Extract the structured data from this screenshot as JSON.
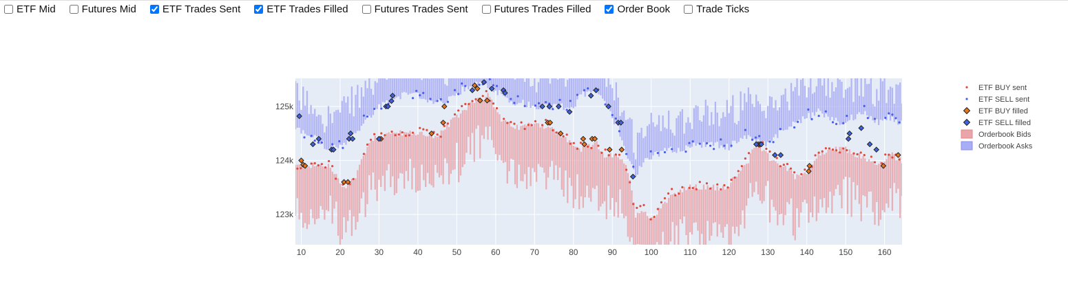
{
  "toolbar": {
    "toggles": [
      {
        "label": "ETF Mid",
        "checked": false
      },
      {
        "label": "Futures Mid",
        "checked": false
      },
      {
        "label": "ETF Trades Sent",
        "checked": true
      },
      {
        "label": "ETF Trades Filled",
        "checked": true
      },
      {
        "label": "Futures Trades Sent",
        "checked": false
      },
      {
        "label": "Futures Trades Filled",
        "checked": false
      },
      {
        "label": "Order Book",
        "checked": true
      },
      {
        "label": "Trade Ticks",
        "checked": false
      }
    ]
  },
  "colors": {
    "plot_bg": "#e5ecf6",
    "grid": "#ffffff",
    "bids": "#e8a5aa",
    "asks": "#a9adf5",
    "buy_sent": "#e04a3c",
    "sell_sent": "#4a5ef0",
    "buy_filled": "#e8741c",
    "sell_filled": "#3e63dd"
  },
  "chart_data": {
    "type": "scatter",
    "xlim": [
      8.5,
      164.5
    ],
    "ylim": [
      122440,
      125520
    ],
    "x_ticks": [
      10,
      20,
      30,
      40,
      50,
      60,
      70,
      80,
      90,
      100,
      110,
      120,
      130,
      140,
      150,
      160
    ],
    "x_tick_labels": [
      "10",
      "20",
      "30",
      "40",
      "50",
      "60",
      "70",
      "80",
      "90",
      "100",
      "110",
      "120",
      "130",
      "140",
      "150",
      "160"
    ],
    "y_ticks": [
      123000,
      124000,
      125000
    ],
    "y_tick_labels": [
      "123k",
      "124k",
      "125k"
    ],
    "grid": true,
    "legend_position": "right",
    "legend": [
      "ETF BUY sent",
      "ETF SELL sent",
      "ETF BUY filled",
      "ETF SELL filled",
      "Orderbook Bids",
      "Orderbook Asks"
    ],
    "orderbook_bids_anchors": [
      [
        8.5,
        123900
      ],
      [
        12,
        123900
      ],
      [
        17,
        123900
      ],
      [
        21,
        123500
      ],
      [
        24,
        123700
      ],
      [
        26,
        124100
      ],
      [
        28,
        124400
      ],
      [
        33,
        124500
      ],
      [
        38,
        124500
      ],
      [
        42,
        124500
      ],
      [
        45,
        124400
      ],
      [
        47,
        124600
      ],
      [
        50,
        124800
      ],
      [
        54,
        125100
      ],
      [
        58,
        125200
      ],
      [
        62,
        124700
      ],
      [
        66,
        124600
      ],
      [
        70,
        124700
      ],
      [
        74,
        124600
      ],
      [
        78,
        124400
      ],
      [
        82,
        124200
      ],
      [
        86,
        124300
      ],
      [
        88,
        124100
      ],
      [
        92,
        124050
      ],
      [
        94,
        123800
      ],
      [
        96,
        123000
      ],
      [
        98,
        123100
      ],
      [
        100,
        122900
      ],
      [
        103,
        123200
      ],
      [
        106,
        123400
      ],
      [
        110,
        123500
      ],
      [
        115,
        123500
      ],
      [
        119,
        123500
      ],
      [
        122,
        123700
      ],
      [
        125,
        124000
      ],
      [
        127,
        124300
      ],
      [
        129,
        124200
      ],
      [
        131,
        124000
      ],
      [
        134,
        123900
      ],
      [
        137,
        123700
      ],
      [
        140,
        123800
      ],
      [
        143,
        124100
      ],
      [
        146,
        124200
      ],
      [
        150,
        124200
      ],
      [
        153,
        124100
      ],
      [
        156,
        124000
      ],
      [
        158,
        123900
      ],
      [
        160,
        124000
      ],
      [
        162,
        124100
      ],
      [
        164.5,
        124000
      ]
    ],
    "orderbook_asks_anchors": [
      [
        8.5,
        124600
      ],
      [
        11,
        124500
      ],
      [
        14,
        124400
      ],
      [
        17,
        124200
      ],
      [
        20,
        124250
      ],
      [
        22,
        124350
      ],
      [
        24,
        124500
      ],
      [
        27,
        124800
      ],
      [
        31,
        125050
      ],
      [
        35,
        125200
      ],
      [
        40,
        125200
      ],
      [
        44,
        125100
      ],
      [
        47,
        125050
      ],
      [
        50,
        125250
      ],
      [
        53,
        125350
      ],
      [
        57,
        125450
      ],
      [
        60,
        125300
      ],
      [
        64,
        125100
      ],
      [
        68,
        125050
      ],
      [
        72,
        125000
      ],
      [
        76,
        125000
      ],
      [
        80,
        125000
      ],
      [
        82,
        125200
      ],
      [
        85,
        125300
      ],
      [
        88,
        125100
      ],
      [
        90,
        124800
      ],
      [
        92,
        124500
      ],
      [
        94,
        124100
      ],
      [
        96,
        123700
      ],
      [
        98,
        124000
      ],
      [
        101,
        124100
      ],
      [
        104,
        124200
      ],
      [
        108,
        124200
      ],
      [
        112,
        124300
      ],
      [
        116,
        124300
      ],
      [
        120,
        124250
      ],
      [
        124,
        124450
      ],
      [
        127,
        124400
      ],
      [
        129,
        124300
      ],
      [
        131,
        124400
      ],
      [
        134,
        124550
      ],
      [
        137,
        124700
      ],
      [
        140,
        124800
      ],
      [
        143,
        124900
      ],
      [
        146,
        124800
      ],
      [
        149,
        124700
      ],
      [
        152,
        124800
      ],
      [
        155,
        124900
      ],
      [
        158,
        124700
      ],
      [
        161,
        124800
      ],
      [
        164.5,
        124700
      ]
    ],
    "etf_buy_filled": [
      [
        10,
        124000
      ],
      [
        10.5,
        123920
      ],
      [
        11,
        123900
      ],
      [
        21,
        123600
      ],
      [
        22,
        123600
      ],
      [
        30,
        124400
      ],
      [
        30.5,
        124400
      ],
      [
        43.5,
        124500
      ],
      [
        46.5,
        124700
      ],
      [
        46.8,
        125000
      ],
      [
        54.6,
        125390
      ],
      [
        55.3,
        125330
      ],
      [
        56,
        125110
      ],
      [
        57.8,
        125110
      ],
      [
        73.4,
        124700
      ],
      [
        74,
        124700
      ],
      [
        76.7,
        124500
      ],
      [
        82.5,
        124400
      ],
      [
        82.8,
        124300
      ],
      [
        84.8,
        124400
      ],
      [
        85.5,
        124400
      ],
      [
        89.3,
        124200
      ],
      [
        92.4,
        124200
      ],
      [
        127.5,
        124300
      ],
      [
        128,
        124300
      ],
      [
        140.5,
        123800
      ],
      [
        140.7,
        123900
      ],
      [
        159.7,
        123900
      ],
      [
        163.5,
        124100
      ]
    ],
    "etf_sell_filled": [
      [
        9.5,
        124820
      ],
      [
        13,
        124300
      ],
      [
        14.5,
        124400
      ],
      [
        17.8,
        124200
      ],
      [
        18.3,
        124200
      ],
      [
        22.3,
        124400
      ],
      [
        22.7,
        124500
      ],
      [
        23.2,
        124400
      ],
      [
        30,
        124400
      ],
      [
        31.8,
        125000
      ],
      [
        32.3,
        125000
      ],
      [
        33.2,
        125100
      ],
      [
        33.5,
        125200
      ],
      [
        54,
        125300
      ],
      [
        57,
        125450
      ],
      [
        59,
        125330
      ],
      [
        62,
        125300
      ],
      [
        62.4,
        125250
      ],
      [
        72,
        125000
      ],
      [
        73.8,
        125000
      ],
      [
        76.2,
        125000
      ],
      [
        79,
        124900
      ],
      [
        84.5,
        125200
      ],
      [
        85.8,
        125300
      ],
      [
        89,
        125000
      ],
      [
        91.5,
        124700
      ],
      [
        92.2,
        124700
      ],
      [
        95.3,
        123700
      ],
      [
        127,
        124300
      ],
      [
        128.3,
        124300
      ],
      [
        131.8,
        124100
      ],
      [
        133.3,
        124100
      ],
      [
        150.7,
        124400
      ],
      [
        151,
        124500
      ],
      [
        154,
        124600
      ],
      [
        156.2,
        124300
      ],
      [
        157.9,
        124200
      ]
    ]
  }
}
